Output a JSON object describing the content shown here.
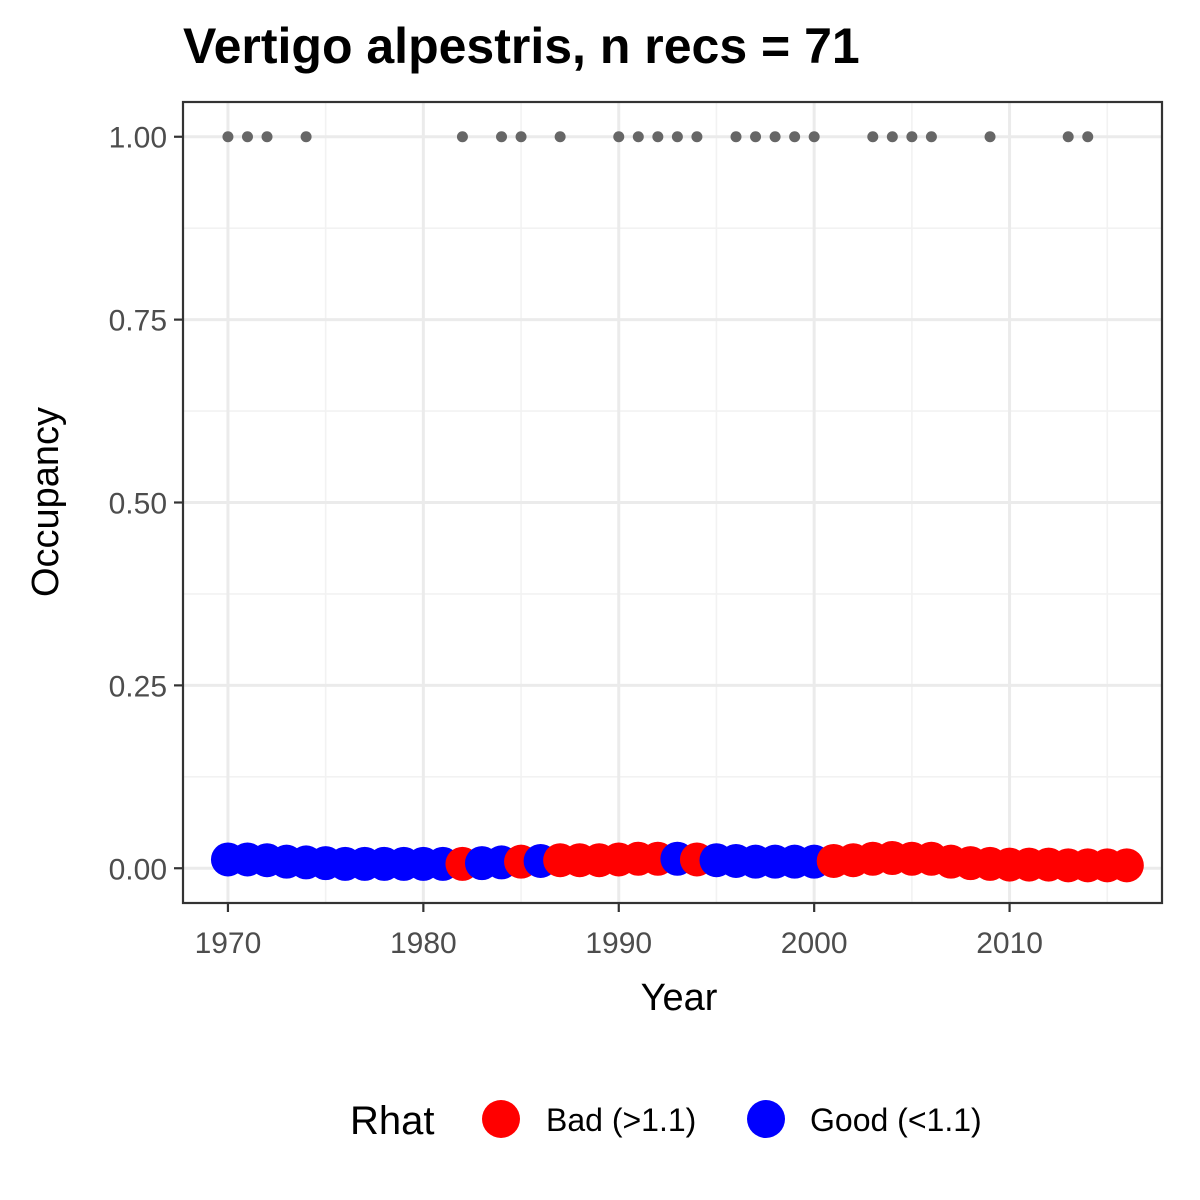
{
  "chart_data": {
    "type": "scatter",
    "title": "Vertigo alpestris, n recs = 71",
    "xlabel": "Year",
    "ylabel": "Occupancy",
    "xlim": [
      1967.7,
      2017.8
    ],
    "ylim": [
      -0.0475,
      1.0475
    ],
    "x_ticks": [
      1970,
      1980,
      1990,
      2000,
      2010
    ],
    "x_tick_labels": [
      "1970",
      "1980",
      "1990",
      "2000",
      "2010"
    ],
    "y_ticks": [
      0,
      0.25,
      0.5,
      0.75,
      1
    ],
    "y_tick_labels": [
      "0.00",
      "0.25",
      "0.50",
      "0.75",
      "1.00"
    ],
    "grid": true,
    "legend": {
      "title": "Rhat",
      "position": "bottom",
      "entries": [
        {
          "label": "Bad (>1.1)",
          "color": "#ff0000"
        },
        {
          "label": "Good (<1.1)",
          "color": "#0000ff"
        }
      ]
    },
    "colors": {
      "Bad": "#ff0000",
      "Good": "#0000ff",
      "records": "#666666"
    },
    "series": [
      {
        "name": "Rhat",
        "x": [
          1970,
          1971,
          1972,
          1973,
          1974,
          1975,
          1976,
          1977,
          1978,
          1979,
          1980,
          1981,
          1982,
          1983,
          1984,
          1985,
          1986,
          1987,
          1988,
          1989,
          1990,
          1991,
          1992,
          1993,
          1994,
          1995,
          1996,
          1997,
          1998,
          1999,
          2000,
          2001,
          2002,
          2003,
          2004,
          2005,
          2006,
          2007,
          2008,
          2009,
          2010,
          2011,
          2012,
          2013,
          2014,
          2015,
          2016
        ],
        "y": [
          0.012,
          0.012,
          0.011,
          0.009,
          0.008,
          0.007,
          0.006,
          0.006,
          0.006,
          0.006,
          0.006,
          0.006,
          0.006,
          0.007,
          0.008,
          0.009,
          0.01,
          0.011,
          0.011,
          0.011,
          0.012,
          0.013,
          0.013,
          0.013,
          0.012,
          0.011,
          0.01,
          0.009,
          0.009,
          0.009,
          0.009,
          0.01,
          0.011,
          0.013,
          0.014,
          0.013,
          0.013,
          0.009,
          0.007,
          0.006,
          0.005,
          0.005,
          0.005,
          0.004,
          0.004,
          0.004,
          0.004
        ],
        "rhat": [
          "Good",
          "Good",
          "Good",
          "Good",
          "Good",
          "Good",
          "Good",
          "Good",
          "Good",
          "Good",
          "Good",
          "Good",
          "Bad",
          "Good",
          "Good",
          "Bad",
          "Good",
          "Bad",
          "Bad",
          "Bad",
          "Bad",
          "Bad",
          "Bad",
          "Good",
          "Bad",
          "Good",
          "Good",
          "Good",
          "Good",
          "Good",
          "Good",
          "Bad",
          "Bad",
          "Bad",
          "Bad",
          "Bad",
          "Bad",
          "Bad",
          "Bad",
          "Bad",
          "Bad",
          "Bad",
          "Bad",
          "Bad",
          "Bad",
          "Bad",
          "Bad"
        ]
      },
      {
        "name": "records",
        "x": [
          1970,
          1971,
          1972,
          1974,
          1982,
          1984,
          1985,
          1987,
          1990,
          1991,
          1992,
          1993,
          1994,
          1996,
          1997,
          1998,
          1999,
          2000,
          2003,
          2004,
          2005,
          2006,
          2009,
          2013,
          2014
        ],
        "y": [
          1,
          1,
          1,
          1,
          1,
          1,
          1,
          1,
          1,
          1,
          1,
          1,
          1,
          1,
          1,
          1,
          1,
          1,
          1,
          1,
          1,
          1,
          1,
          1,
          1
        ]
      }
    ]
  }
}
